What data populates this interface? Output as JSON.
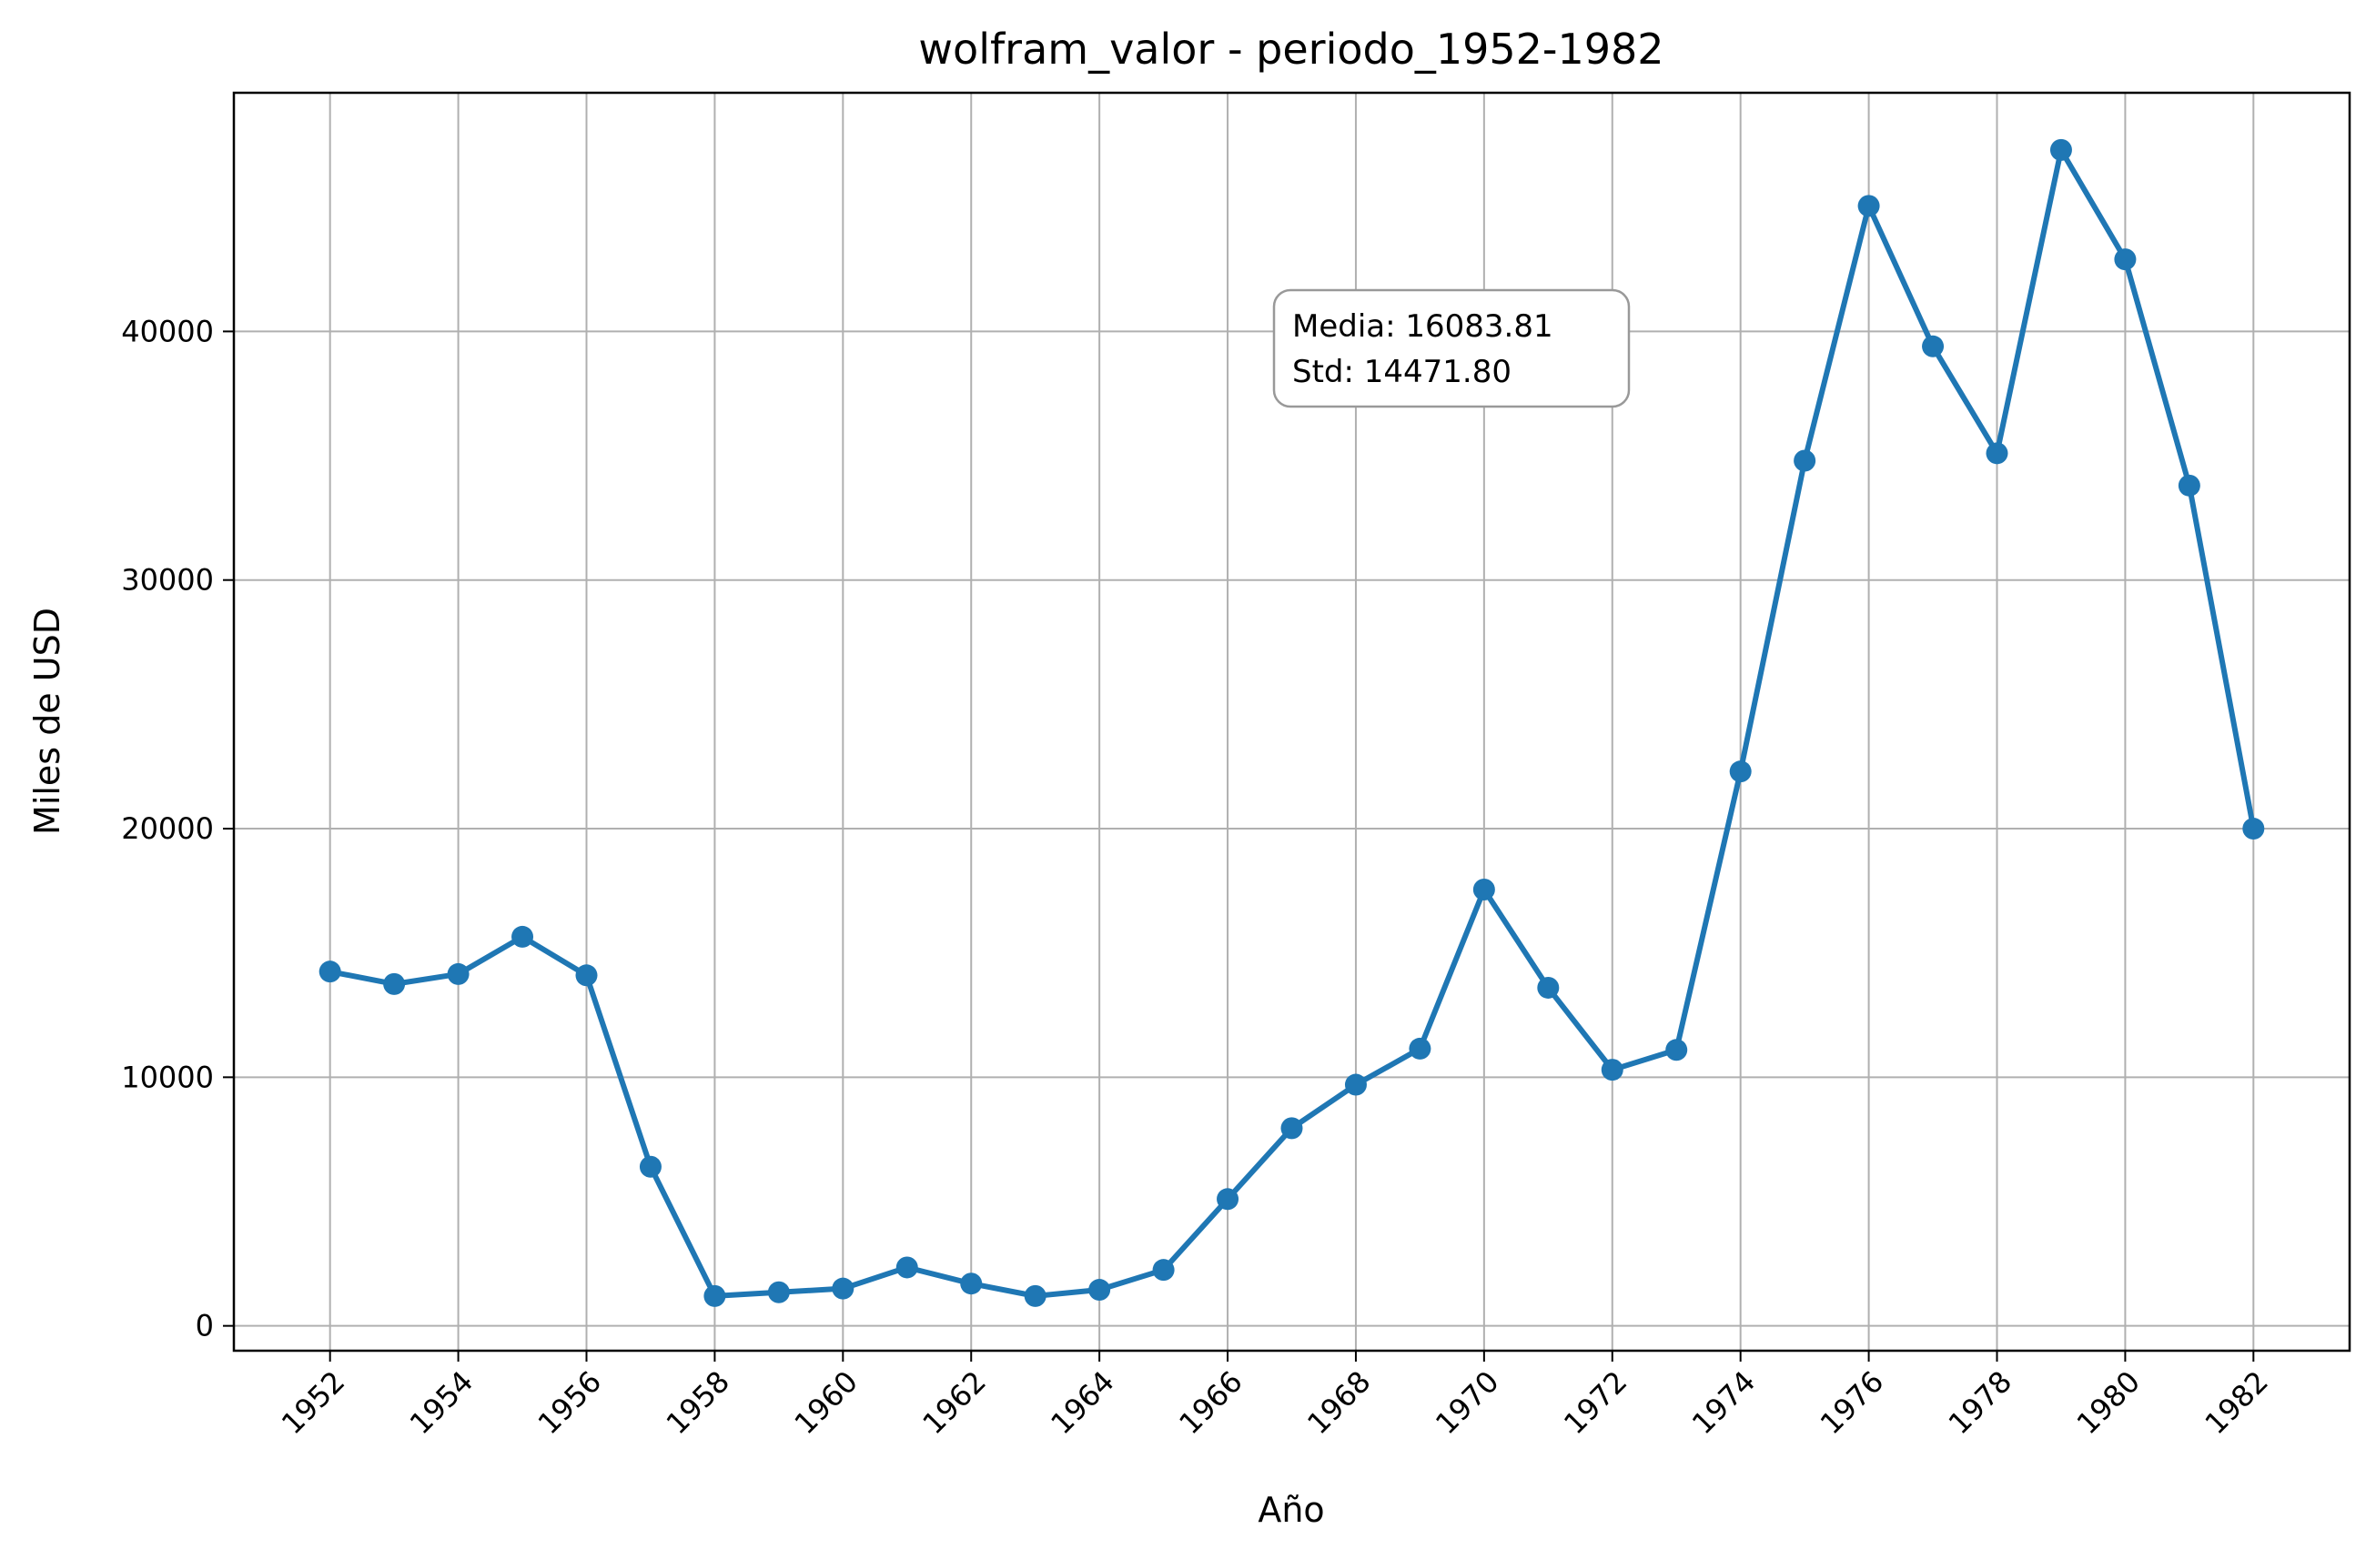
{
  "chart_data": {
    "type": "line",
    "title": "wolfram_valor - periodo_1952-1982",
    "xlabel": "Año",
    "ylabel": "Miles de USD",
    "x": [
      1952,
      1953,
      1954,
      1955,
      1956,
      1957,
      1958,
      1959,
      1960,
      1961,
      1962,
      1963,
      1964,
      1965,
      1966,
      1967,
      1968,
      1969,
      1970,
      1971,
      1972,
      1973,
      1974,
      1975,
      1976,
      1977,
      1978,
      1979,
      1980,
      1981,
      1982
    ],
    "series": [
      {
        "values": [
          14250,
          13750,
          14150,
          15650,
          14100,
          6400,
          1200,
          1350,
          1500,
          2350,
          1700,
          1200,
          1450,
          2250,
          5100,
          7950,
          9700,
          11150,
          17550,
          13600,
          10300,
          11100,
          22300,
          34800,
          45050,
          39400,
          35100,
          47300,
          42900,
          33800,
          20000
        ],
        "color": "#1f77b4"
      }
    ],
    "xticks": [
      "1952",
      "1954",
      "1956",
      "1958",
      "1960",
      "1962",
      "1964",
      "1966",
      "1968",
      "1970",
      "1972",
      "1974",
      "1976",
      "1978",
      "1980",
      "1982"
    ],
    "yticks": [
      "0",
      "10000",
      "20000",
      "30000",
      "40000"
    ],
    "xlim": [
      1950.5,
      1983.5
    ],
    "ylim": [
      -1000,
      49600
    ],
    "grid": true,
    "annotation": {
      "lines": [
        "Media: 16083.81",
        "Std: 14471.80"
      ]
    }
  }
}
